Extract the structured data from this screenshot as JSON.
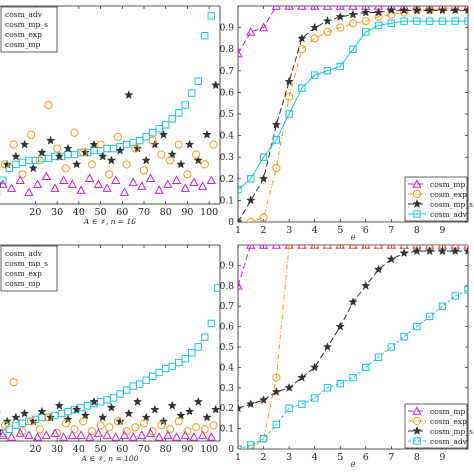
{
  "colors": {
    "magenta": "#c71fd6",
    "orange": "#f29a1c",
    "black": "#333333",
    "cyan": "#19c6d6",
    "axis": "#222222"
  },
  "chart_data": [
    {
      "id": "top-left",
      "type": "scatter",
      "xlabel": "A ∈ 𝒱,  n = 16",
      "xlim": [
        0,
        105
      ],
      "ylim": [
        0,
        1
      ],
      "xticks": [
        20,
        30,
        40,
        50,
        60,
        70,
        80,
        90,
        100
      ],
      "legend": {
        "placement": "top-left",
        "entries": [
          "cosm_adv",
          "cosm_mp_s",
          "cosm_exp",
          "cosm_mp"
        ]
      },
      "series": [
        {
          "name": "cosm_adv",
          "color": "cyan",
          "marker": "square",
          "x": [
            2,
            5,
            8,
            11,
            14,
            17,
            20,
            23,
            26,
            29,
            32,
            35,
            38,
            41,
            44,
            47,
            50,
            53,
            56,
            59,
            62,
            65,
            68,
            71,
            74,
            77,
            80,
            83,
            86,
            89,
            92,
            95,
            98,
            101
          ],
          "y": [
            0.02,
            0.12,
            0.18,
            0.2,
            0.21,
            0.22,
            0.22,
            0.23,
            0.23,
            0.24,
            0.24,
            0.25,
            0.25,
            0.26,
            0.26,
            0.27,
            0.27,
            0.28,
            0.28,
            0.29,
            0.3,
            0.31,
            0.32,
            0.34,
            0.36,
            0.38,
            0.4,
            0.43,
            0.46,
            0.5,
            0.56,
            0.62,
            0.85,
            0.95
          ]
        },
        {
          "name": "cosm_mp_s",
          "color": "black",
          "marker": "star",
          "x": [
            3,
            7,
            11,
            15,
            19,
            23,
            27,
            31,
            35,
            39,
            43,
            47,
            51,
            55,
            59,
            63,
            67,
            71,
            75,
            79,
            83,
            87,
            91,
            95,
            99,
            103
          ],
          "y": [
            0.1,
            0.2,
            0.24,
            0.3,
            0.18,
            0.26,
            0.32,
            0.24,
            0.28,
            0.2,
            0.26,
            0.3,
            0.24,
            0.22,
            0.27,
            0.55,
            0.28,
            0.22,
            0.3,
            0.35,
            0.25,
            0.2,
            0.3,
            0.22,
            0.35,
            0.6
          ]
        },
        {
          "name": "cosm_exp",
          "color": "orange",
          "marker": "circle",
          "x": [
            2,
            6,
            10,
            14,
            18,
            22,
            26,
            30,
            34,
            38,
            42,
            46,
            50,
            54,
            58,
            62,
            66,
            70,
            74,
            78,
            82,
            86,
            90,
            94,
            98,
            102
          ],
          "y": [
            0.05,
            0.2,
            0.3,
            0.15,
            0.35,
            0.22,
            0.5,
            0.28,
            0.18,
            0.36,
            0.26,
            0.2,
            0.3,
            0.15,
            0.34,
            0.2,
            0.28,
            0.17,
            0.32,
            0.25,
            0.22,
            0.3,
            0.15,
            0.25,
            0.2,
            0.3
          ]
        },
        {
          "name": "cosm_mp",
          "color": "magenta",
          "marker": "triangle",
          "x": [
            1,
            5,
            9,
            13,
            17,
            21,
            25,
            29,
            33,
            37,
            41,
            45,
            49,
            53,
            57,
            61,
            65,
            69,
            73,
            77,
            81,
            85,
            89,
            93,
            97,
            101
          ],
          "y": [
            0.05,
            0.1,
            0.08,
            0.12,
            0.06,
            0.1,
            0.14,
            0.08,
            0.12,
            0.1,
            0.07,
            0.13,
            0.1,
            0.08,
            0.12,
            0.06,
            0.11,
            0.09,
            0.13,
            0.07,
            0.1,
            0.12,
            0.08,
            0.11,
            0.09,
            0.12
          ]
        }
      ]
    },
    {
      "id": "top-right",
      "type": "line",
      "xlabel": "θ",
      "xlim": [
        1,
        10
      ],
      "ylim": [
        0,
        1
      ],
      "xticks": [
        1,
        2,
        3,
        4,
        5,
        6,
        7,
        8,
        9
      ],
      "yticks": [
        0,
        0.1,
        0.2,
        0.3,
        0.4,
        0.5,
        0.6,
        0.7,
        0.8,
        0.9
      ],
      "legend": {
        "placement": "bottom-right",
        "entries": [
          "cosm_mp",
          "cosm_exp",
          "cosm_mp_s",
          "cosm_adv"
        ]
      },
      "series": [
        {
          "name": "cosm_mp",
          "color": "magenta",
          "marker": "triangle",
          "dash": "6,3",
          "x": [
            1,
            1.5,
            2,
            2.5,
            3,
            3.5,
            4,
            4.5,
            5,
            5.5,
            6,
            6.5,
            7,
            7.5,
            8,
            8.5,
            9,
            9.5,
            10
          ],
          "y": [
            0.78,
            0.88,
            0.9,
            1,
            1,
            1,
            1,
            1,
            1,
            1,
            1,
            1,
            1,
            1,
            1,
            1,
            1,
            1,
            1
          ]
        },
        {
          "name": "cosm_exp",
          "color": "orange",
          "marker": "circle",
          "dash": "5,2,1,2",
          "x": [
            1,
            1.5,
            2,
            2.5,
            3,
            3.5,
            4,
            4.5,
            5,
            5.5,
            6,
            6.5,
            7,
            7.5,
            8,
            8.5,
            9,
            9.5,
            10
          ],
          "y": [
            0,
            0,
            0.02,
            0.25,
            0.58,
            0.8,
            0.85,
            0.88,
            0.9,
            0.92,
            0.93,
            0.95,
            0.96,
            0.97,
            0.98,
            0.98,
            0.99,
            0.99,
            0.99
          ]
        },
        {
          "name": "cosm_mp_s",
          "color": "black",
          "marker": "star",
          "dash": "6,3",
          "x": [
            1,
            1.5,
            2,
            2.5,
            3,
            3.5,
            4,
            4.5,
            5,
            5.5,
            6,
            6.5,
            7,
            7.5,
            8,
            8.5,
            9,
            9.5,
            10
          ],
          "y": [
            0,
            0.1,
            0.2,
            0.45,
            0.65,
            0.85,
            0.9,
            0.93,
            0.95,
            0.96,
            0.97,
            0.97,
            0.98,
            0.98,
            0.98,
            0.98,
            0.98,
            0.98,
            0.98
          ]
        },
        {
          "name": "cosm_adv",
          "color": "cyan",
          "marker": "square",
          "dash": "",
          "x": [
            1,
            1.5,
            2,
            2.5,
            3,
            3.5,
            4,
            4.5,
            5,
            5.5,
            6,
            6.5,
            7,
            7.5,
            8,
            8.5,
            9,
            9.5,
            10
          ],
          "y": [
            0.15,
            0.2,
            0.3,
            0.38,
            0.5,
            0.62,
            0.68,
            0.7,
            0.72,
            0.8,
            0.88,
            0.91,
            0.92,
            0.93,
            0.93,
            0.93,
            0.93,
            0.93,
            0.93
          ]
        }
      ]
    },
    {
      "id": "bottom-left",
      "type": "scatter",
      "xlabel": "A ∈ 𝒱,  n = 100",
      "xlim": [
        0,
        105
      ],
      "ylim": [
        0,
        1
      ],
      "xticks": [
        20,
        30,
        40,
        50,
        60,
        70,
        80,
        90,
        100
      ],
      "legend": {
        "placement": "top-left",
        "entries": [
          "cosm_adv",
          "cosm_mp_s",
          "cosm_exp",
          "cosm_mp"
        ]
      },
      "series": [
        {
          "name": "cosm_adv",
          "color": "cyan",
          "marker": "square",
          "x": [
            2,
            5,
            8,
            11,
            14,
            17,
            20,
            23,
            26,
            29,
            32,
            35,
            38,
            41,
            44,
            47,
            50,
            53,
            56,
            59,
            62,
            65,
            68,
            71,
            74,
            77,
            80,
            83,
            86,
            89,
            92,
            95,
            98,
            101,
            104
          ],
          "y": [
            0.02,
            0.04,
            0.06,
            0.08,
            0.09,
            0.1,
            0.11,
            0.12,
            0.12,
            0.13,
            0.14,
            0.15,
            0.16,
            0.17,
            0.18,
            0.19,
            0.2,
            0.21,
            0.22,
            0.24,
            0.26,
            0.28,
            0.29,
            0.31,
            0.33,
            0.35,
            0.37,
            0.38,
            0.4,
            0.42,
            0.45,
            0.48,
            0.53,
            0.6,
            0.78
          ]
        },
        {
          "name": "cosm_mp_s",
          "color": "black",
          "marker": "star",
          "x": [
            3,
            7,
            11,
            15,
            19,
            23,
            27,
            31,
            35,
            39,
            43,
            47,
            51,
            55,
            59,
            63,
            67,
            71,
            75,
            79,
            83,
            87,
            91,
            95,
            99,
            103
          ],
          "y": [
            0.05,
            0.1,
            0.12,
            0.14,
            0.1,
            0.15,
            0.12,
            0.18,
            0.11,
            0.16,
            0.13,
            0.2,
            0.12,
            0.17,
            0.1,
            0.14,
            0.2,
            0.12,
            0.16,
            0.1,
            0.18,
            0.13,
            0.15,
            0.2,
            0.12,
            0.16
          ]
        },
        {
          "name": "cosm_exp",
          "color": "orange",
          "marker": "circle",
          "x": [
            2,
            6,
            10,
            14,
            18,
            22,
            26,
            30,
            34,
            38,
            42,
            46,
            50,
            54,
            58,
            62,
            66,
            70,
            74,
            78,
            82,
            86,
            90,
            94,
            98,
            102
          ],
          "y": [
            0.15,
            0.08,
            0.3,
            0.05,
            0.1,
            0.06,
            0.12,
            0.04,
            0.09,
            0.06,
            0.1,
            0.05,
            0.08,
            0.07,
            0.1,
            0.05,
            0.07,
            0.09,
            0.05,
            0.08,
            0.06,
            0.1,
            0.05,
            0.07,
            0.06,
            0.08
          ]
        },
        {
          "name": "cosm_mp",
          "color": "magenta",
          "marker": "triangle",
          "x": [
            1,
            5,
            9,
            13,
            17,
            21,
            25,
            29,
            33,
            37,
            41,
            45,
            49,
            53,
            57,
            61,
            65,
            69,
            73,
            77,
            81,
            85,
            89,
            93,
            97,
            101
          ],
          "y": [
            0.02,
            0.03,
            0.02,
            0.04,
            0.03,
            0.02,
            0.03,
            0.04,
            0.02,
            0.03,
            0.03,
            0.02,
            0.04,
            0.03,
            0.02,
            0.03,
            0.02,
            0.03,
            0.04,
            0.02,
            0.03,
            0.02,
            0.03,
            0.02,
            0.03,
            0.02
          ]
        }
      ]
    },
    {
      "id": "bottom-right",
      "type": "line",
      "xlabel": "θ",
      "xlim": [
        1,
        10
      ],
      "ylim": [
        0,
        1
      ],
      "xticks": [
        1,
        2,
        3,
        4,
        5,
        6,
        7,
        8,
        9
      ],
      "yticks": [
        0,
        0.1,
        0.2,
        0.3,
        0.4,
        0.5,
        0.6,
        0.7,
        0.8,
        0.9
      ],
      "legend": {
        "placement": "bottom-right",
        "entries": [
          "cosm_mp",
          "cosm_exp",
          "cosm_mp_s",
          "cosm_adv"
        ]
      },
      "series": [
        {
          "name": "cosm_mp",
          "color": "magenta",
          "marker": "triangle",
          "dash": "6,3",
          "x": [
            1,
            1.5,
            2,
            2.5,
            3,
            3.5,
            4,
            4.5,
            5,
            5.5,
            6,
            6.5,
            7,
            7.5,
            8,
            8.5,
            9,
            9.5,
            10
          ],
          "y": [
            0.8,
            1,
            1,
            1,
            1,
            1,
            1,
            1,
            1,
            1,
            1,
            1,
            1,
            1,
            1,
            1,
            1,
            1,
            1
          ]
        },
        {
          "name": "cosm_exp",
          "color": "orange",
          "marker": "circle",
          "dash": "5,2,1,2",
          "x": [
            1,
            1.5,
            2,
            2.5,
            3,
            3.5,
            4,
            4.5,
            5,
            5.5,
            6,
            6.5,
            7,
            7.5,
            8,
            8.5,
            9,
            9.5,
            10
          ],
          "y": [
            0,
            0,
            0.05,
            0.35,
            1,
            1,
            1,
            1,
            1,
            1,
            1,
            1,
            1,
            1,
            1,
            1,
            1,
            1,
            1
          ]
        },
        {
          "name": "cosm_mp_s",
          "color": "black",
          "marker": "star",
          "dash": "6,3",
          "x": [
            1,
            1.5,
            2,
            2.5,
            3,
            3.5,
            4,
            4.5,
            5,
            5.5,
            6,
            6.5,
            7,
            7.5,
            8,
            8.5,
            9,
            9.5,
            10
          ],
          "y": [
            0.2,
            0.22,
            0.24,
            0.28,
            0.3,
            0.35,
            0.4,
            0.5,
            0.6,
            0.72,
            0.8,
            0.88,
            0.93,
            0.96,
            0.97,
            0.97,
            0.97,
            0.97,
            0.97
          ]
        },
        {
          "name": "cosm_adv",
          "color": "cyan",
          "marker": "square",
          "dash": "3,2",
          "x": [
            1,
            1.5,
            2,
            2.5,
            3,
            3.5,
            4,
            4.5,
            5,
            5.5,
            6,
            6.5,
            7,
            7.5,
            8,
            8.5,
            9,
            9.5,
            10
          ],
          "y": [
            0,
            0.02,
            0.05,
            0.12,
            0.2,
            0.22,
            0.25,
            0.3,
            0.32,
            0.35,
            0.4,
            0.45,
            0.5,
            0.55,
            0.6,
            0.65,
            0.7,
            0.75,
            0.78
          ]
        }
      ]
    }
  ]
}
